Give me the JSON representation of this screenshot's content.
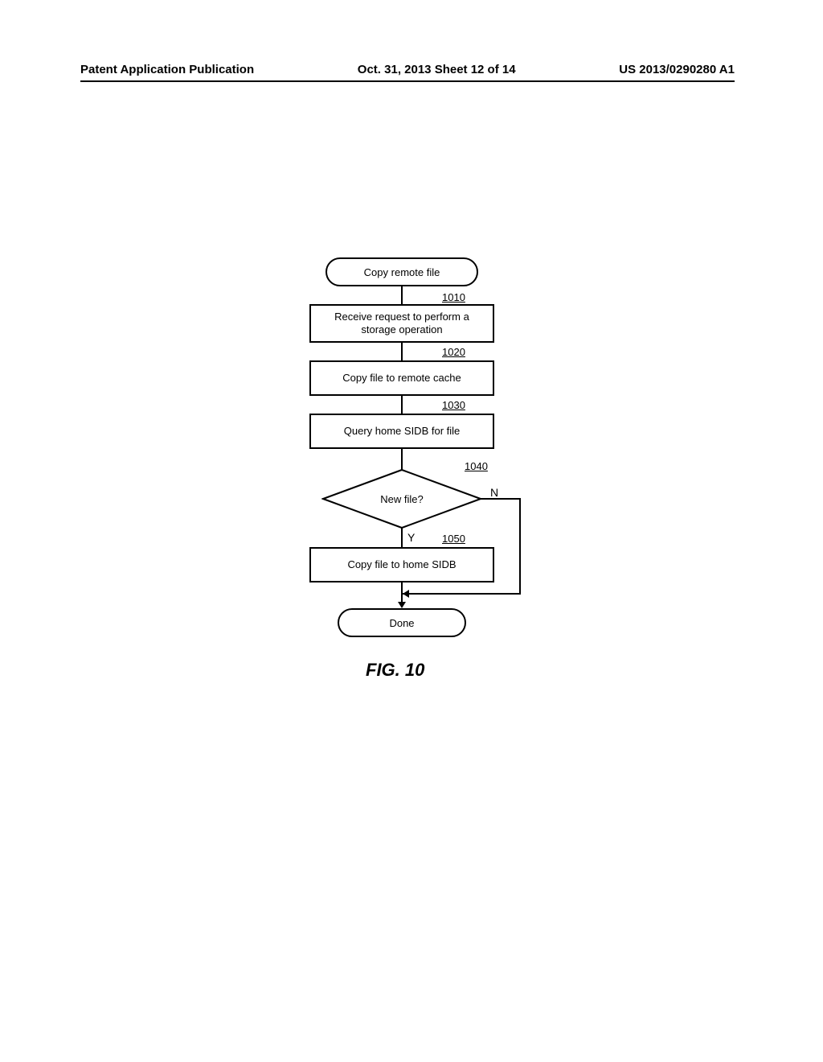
{
  "header": {
    "left": "Patent Application Publication",
    "mid": "Oct. 31, 2013   Sheet 12 of 14",
    "right": "US 2013/0290280 A1"
  },
  "flow": {
    "type": "flowchart",
    "background_color": "#ffffff",
    "stroke_color": "#000000",
    "stroke_width": 2,
    "font_size": 13,
    "nodes": {
      "start": {
        "shape": "terminator",
        "text": "Copy remote file"
      },
      "p1010": {
        "shape": "process",
        "text": "Receive request to perform a\nstorage operation",
        "ref": "1010"
      },
      "p1020": {
        "shape": "process",
        "text": "Copy file to remote cache",
        "ref": "1020"
      },
      "p1030": {
        "shape": "process",
        "text": "Query home SIDB for file",
        "ref": "1030"
      },
      "d1040": {
        "shape": "decision",
        "text": "New file?",
        "ref": "1040",
        "yes": "Y",
        "no": "N"
      },
      "p1050": {
        "shape": "process",
        "text": "Copy file to home SIDB",
        "ref": "1050"
      },
      "done": {
        "shape": "terminator",
        "text": "Done"
      }
    },
    "edges": [
      {
        "from": "start",
        "to": "p1010"
      },
      {
        "from": "p1010",
        "to": "p1020"
      },
      {
        "from": "p1020",
        "to": "p1030"
      },
      {
        "from": "p1030",
        "to": "d1040"
      },
      {
        "from": "d1040",
        "to": "p1050",
        "label": "Y"
      },
      {
        "from": "d1040",
        "to": "done",
        "label": "N"
      },
      {
        "from": "p1050",
        "to": "done"
      }
    ]
  },
  "caption": "FIG. 10"
}
